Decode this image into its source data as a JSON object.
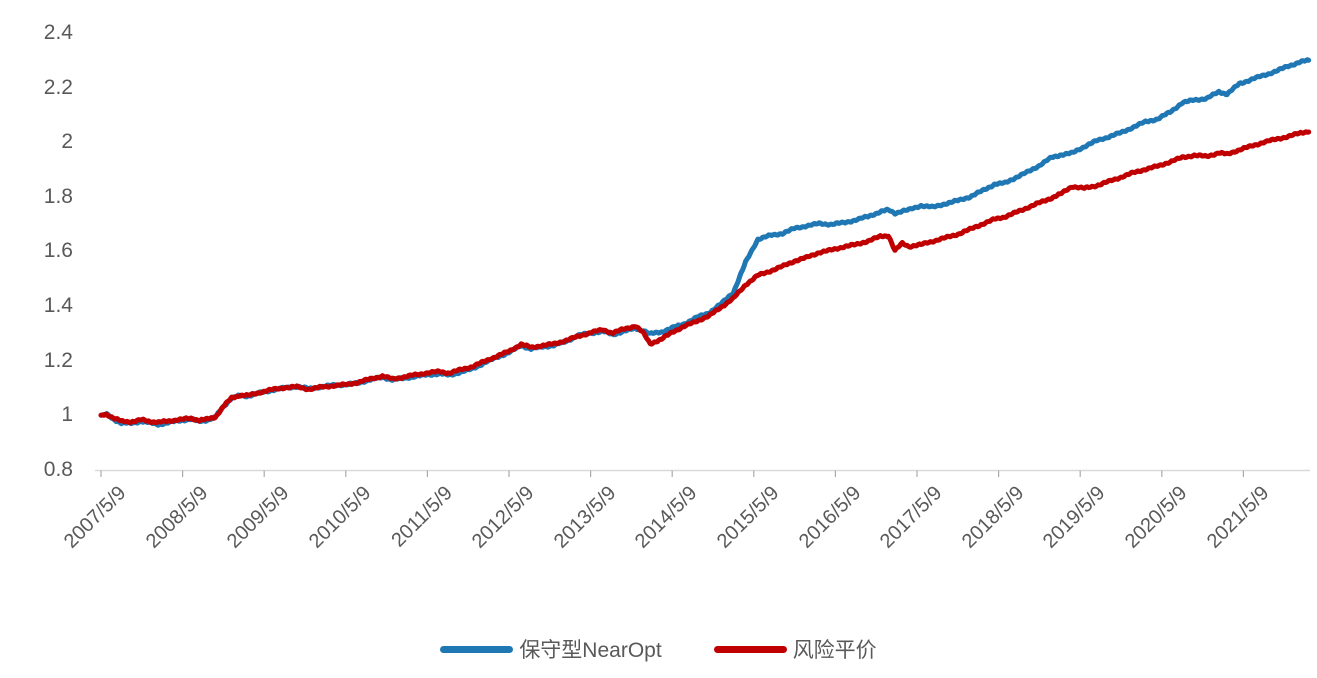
{
  "colors": {
    "series_blue": "#1F77B4",
    "series_red": "#C00000",
    "axis_line": "#D9D9D9",
    "tick_mark": "#ABABAB",
    "label_text": "#595959",
    "background": "#FFFFFF"
  },
  "chart_data": {
    "type": "line",
    "title": "",
    "xlabel": "",
    "ylabel": "",
    "grid": false,
    "legend_position": "bottom-center",
    "x_unit": "decimal_year",
    "x_range": [
      2007.35,
      2022.15
    ],
    "y_axis": {
      "min": 0.8,
      "max": 2.4,
      "step": 0.2,
      "labels": [
        "2.4",
        "2.2",
        "2",
        "1.8",
        "1.6",
        "1.4",
        "1.2",
        "1",
        "0.8"
      ]
    },
    "x_axis": {
      "labels": [
        "2007/5/9",
        "2008/5/9",
        "2009/5/9",
        "2010/5/9",
        "2011/5/9",
        "2012/5/9",
        "2013/5/9",
        "2014/5/9",
        "2015/5/9",
        "2016/5/9",
        "2017/5/9",
        "2018/5/9",
        "2019/5/9",
        "2020/5/9",
        "2021/5/9"
      ],
      "tick_years": [
        2007.35,
        2008.35,
        2009.35,
        2010.35,
        2011.35,
        2012.35,
        2013.35,
        2014.35,
        2015.35,
        2016.35,
        2017.35,
        2018.35,
        2019.35,
        2020.35,
        2021.35
      ]
    },
    "series": [
      {
        "name": "保守型NearOpt",
        "color": "#1F77B4",
        "points": [
          [
            2007.35,
            1.0
          ],
          [
            2007.42,
            1.003
          ],
          [
            2007.5,
            0.985
          ],
          [
            2007.6,
            0.972
          ],
          [
            2007.72,
            0.97
          ],
          [
            2007.85,
            0.978
          ],
          [
            2007.95,
            0.972
          ],
          [
            2008.05,
            0.966
          ],
          [
            2008.17,
            0.972
          ],
          [
            2008.3,
            0.98
          ],
          [
            2008.45,
            0.985
          ],
          [
            2008.55,
            0.978
          ],
          [
            2008.65,
            0.982
          ],
          [
            2008.75,
            0.992
          ],
          [
            2008.85,
            1.032
          ],
          [
            2008.95,
            1.062
          ],
          [
            2009.05,
            1.072
          ],
          [
            2009.15,
            1.07
          ],
          [
            2009.3,
            1.082
          ],
          [
            2009.45,
            1.092
          ],
          [
            2009.6,
            1.1
          ],
          [
            2009.75,
            1.105
          ],
          [
            2009.9,
            1.097
          ],
          [
            2010.05,
            1.104
          ],
          [
            2010.2,
            1.11
          ],
          [
            2010.35,
            1.112
          ],
          [
            2010.5,
            1.118
          ],
          [
            2010.65,
            1.13
          ],
          [
            2010.8,
            1.139
          ],
          [
            2010.92,
            1.13
          ],
          [
            2011.05,
            1.135
          ],
          [
            2011.2,
            1.142
          ],
          [
            2011.35,
            1.148
          ],
          [
            2011.5,
            1.152
          ],
          [
            2011.62,
            1.147
          ],
          [
            2011.75,
            1.157
          ],
          [
            2011.9,
            1.17
          ],
          [
            2012.05,
            1.192
          ],
          [
            2012.2,
            1.212
          ],
          [
            2012.35,
            1.23
          ],
          [
            2012.5,
            1.255
          ],
          [
            2012.62,
            1.243
          ],
          [
            2012.75,
            1.25
          ],
          [
            2012.9,
            1.256
          ],
          [
            2013.05,
            1.27
          ],
          [
            2013.2,
            1.293
          ],
          [
            2013.35,
            1.3
          ],
          [
            2013.5,
            1.308
          ],
          [
            2013.62,
            1.295
          ],
          [
            2013.75,
            1.307
          ],
          [
            2013.9,
            1.318
          ],
          [
            2014.0,
            1.31
          ],
          [
            2014.08,
            1.298
          ],
          [
            2014.22,
            1.305
          ],
          [
            2014.35,
            1.32
          ],
          [
            2014.5,
            1.335
          ],
          [
            2014.65,
            1.358
          ],
          [
            2014.8,
            1.375
          ],
          [
            2014.95,
            1.408
          ],
          [
            2015.1,
            1.45
          ],
          [
            2015.25,
            1.56
          ],
          [
            2015.4,
            1.645
          ],
          [
            2015.55,
            1.658
          ],
          [
            2015.7,
            1.666
          ],
          [
            2015.85,
            1.684
          ],
          [
            2016.0,
            1.694
          ],
          [
            2016.15,
            1.702
          ],
          [
            2016.3,
            1.699
          ],
          [
            2016.45,
            1.705
          ],
          [
            2016.6,
            1.715
          ],
          [
            2016.75,
            1.728
          ],
          [
            2016.9,
            1.745
          ],
          [
            2017.0,
            1.752
          ],
          [
            2017.08,
            1.74
          ],
          [
            2017.17,
            1.748
          ],
          [
            2017.25,
            1.752
          ],
          [
            2017.4,
            1.768
          ],
          [
            2017.55,
            1.762
          ],
          [
            2017.7,
            1.775
          ],
          [
            2017.85,
            1.786
          ],
          [
            2018.0,
            1.8
          ],
          [
            2018.15,
            1.822
          ],
          [
            2018.3,
            1.846
          ],
          [
            2018.42,
            1.85
          ],
          [
            2018.55,
            1.869
          ],
          [
            2018.7,
            1.89
          ],
          [
            2018.85,
            1.915
          ],
          [
            2019.0,
            1.944
          ],
          [
            2019.12,
            1.954
          ],
          [
            2019.25,
            1.96
          ],
          [
            2019.4,
            1.984
          ],
          [
            2019.55,
            2.005
          ],
          [
            2019.7,
            2.02
          ],
          [
            2019.85,
            2.035
          ],
          [
            2020.0,
            2.055
          ],
          [
            2020.15,
            2.075
          ],
          [
            2020.3,
            2.085
          ],
          [
            2020.45,
            2.11
          ],
          [
            2020.6,
            2.144
          ],
          [
            2020.75,
            2.155
          ],
          [
            2020.9,
            2.16
          ],
          [
            2021.05,
            2.185
          ],
          [
            2021.15,
            2.176
          ],
          [
            2021.3,
            2.214
          ],
          [
            2021.45,
            2.23
          ],
          [
            2021.6,
            2.245
          ],
          [
            2021.75,
            2.26
          ],
          [
            2021.9,
            2.279
          ],
          [
            2022.05,
            2.294
          ],
          [
            2022.15,
            2.3
          ]
        ]
      },
      {
        "name": "风险平价",
        "color": "#C00000",
        "points": [
          [
            2007.35,
            1.0
          ],
          [
            2007.42,
            1.004
          ],
          [
            2007.5,
            0.99
          ],
          [
            2007.6,
            0.978
          ],
          [
            2007.72,
            0.976
          ],
          [
            2007.85,
            0.983
          ],
          [
            2007.95,
            0.977
          ],
          [
            2008.05,
            0.974
          ],
          [
            2008.17,
            0.978
          ],
          [
            2008.3,
            0.984
          ],
          [
            2008.45,
            0.988
          ],
          [
            2008.55,
            0.982
          ],
          [
            2008.65,
            0.985
          ],
          [
            2008.75,
            0.993
          ],
          [
            2008.85,
            1.032
          ],
          [
            2008.95,
            1.063
          ],
          [
            2009.05,
            1.073
          ],
          [
            2009.15,
            1.072
          ],
          [
            2009.3,
            1.084
          ],
          [
            2009.45,
            1.094
          ],
          [
            2009.6,
            1.101
          ],
          [
            2009.75,
            1.104
          ],
          [
            2009.9,
            1.095
          ],
          [
            2010.05,
            1.103
          ],
          [
            2010.2,
            1.108
          ],
          [
            2010.35,
            1.112
          ],
          [
            2010.5,
            1.12
          ],
          [
            2010.65,
            1.133
          ],
          [
            2010.8,
            1.143
          ],
          [
            2010.92,
            1.133
          ],
          [
            2011.05,
            1.139
          ],
          [
            2011.2,
            1.148
          ],
          [
            2011.35,
            1.155
          ],
          [
            2011.5,
            1.16
          ],
          [
            2011.62,
            1.154
          ],
          [
            2011.75,
            1.166
          ],
          [
            2011.9,
            1.178
          ],
          [
            2012.05,
            1.197
          ],
          [
            2012.2,
            1.216
          ],
          [
            2012.35,
            1.234
          ],
          [
            2012.5,
            1.26
          ],
          [
            2012.62,
            1.248
          ],
          [
            2012.75,
            1.255
          ],
          [
            2012.9,
            1.261
          ],
          [
            2013.05,
            1.274
          ],
          [
            2013.2,
            1.289
          ],
          [
            2013.35,
            1.303
          ],
          [
            2013.5,
            1.313
          ],
          [
            2013.62,
            1.301
          ],
          [
            2013.75,
            1.315
          ],
          [
            2013.9,
            1.327
          ],
          [
            2014.0,
            1.3
          ],
          [
            2014.08,
            1.262
          ],
          [
            2014.22,
            1.278
          ],
          [
            2014.35,
            1.305
          ],
          [
            2014.5,
            1.325
          ],
          [
            2014.65,
            1.345
          ],
          [
            2014.8,
            1.363
          ],
          [
            2014.95,
            1.396
          ],
          [
            2015.1,
            1.428
          ],
          [
            2015.25,
            1.478
          ],
          [
            2015.4,
            1.512
          ],
          [
            2015.55,
            1.528
          ],
          [
            2015.7,
            1.545
          ],
          [
            2015.85,
            1.565
          ],
          [
            2016.0,
            1.578
          ],
          [
            2016.15,
            1.596
          ],
          [
            2016.3,
            1.605
          ],
          [
            2016.45,
            1.617
          ],
          [
            2016.6,
            1.625
          ],
          [
            2016.75,
            1.638
          ],
          [
            2016.9,
            1.655
          ],
          [
            2017.0,
            1.658
          ],
          [
            2017.08,
            1.603
          ],
          [
            2017.17,
            1.63
          ],
          [
            2017.25,
            1.618
          ],
          [
            2017.4,
            1.625
          ],
          [
            2017.55,
            1.638
          ],
          [
            2017.7,
            1.65
          ],
          [
            2017.85,
            1.663
          ],
          [
            2018.0,
            1.681
          ],
          [
            2018.15,
            1.7
          ],
          [
            2018.3,
            1.718
          ],
          [
            2018.42,
            1.726
          ],
          [
            2018.55,
            1.741
          ],
          [
            2018.7,
            1.76
          ],
          [
            2018.85,
            1.778
          ],
          [
            2019.0,
            1.796
          ],
          [
            2019.12,
            1.812
          ],
          [
            2019.25,
            1.838
          ],
          [
            2019.4,
            1.831
          ],
          [
            2019.55,
            1.841
          ],
          [
            2019.7,
            1.856
          ],
          [
            2019.85,
            1.872
          ],
          [
            2020.0,
            1.888
          ],
          [
            2020.15,
            1.901
          ],
          [
            2020.3,
            1.912
          ],
          [
            2020.45,
            1.928
          ],
          [
            2020.6,
            1.944
          ],
          [
            2020.75,
            1.952
          ],
          [
            2020.9,
            1.948
          ],
          [
            2021.05,
            1.961
          ],
          [
            2021.15,
            1.956
          ],
          [
            2021.3,
            1.972
          ],
          [
            2021.45,
            1.986
          ],
          [
            2021.6,
            2.0
          ],
          [
            2021.75,
            2.011
          ],
          [
            2021.9,
            2.021
          ],
          [
            2022.05,
            2.034
          ],
          [
            2022.15,
            2.04
          ]
        ]
      }
    ]
  }
}
